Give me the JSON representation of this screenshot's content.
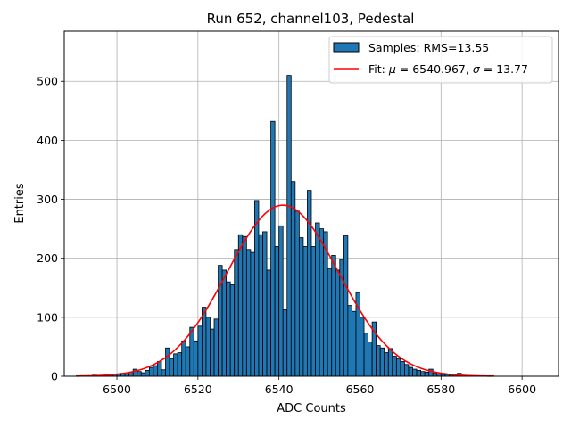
{
  "chart_data": {
    "type": "bar",
    "title": "Run 652, channel103, Pedestal",
    "xlabel": "ADC Counts",
    "ylabel": "Entries",
    "xlim": [
      6487,
      6609
    ],
    "ylim": [
      0,
      585
    ],
    "xticks": [
      6500,
      6520,
      6540,
      6560,
      6580,
      6600
    ],
    "yticks": [
      0,
      100,
      200,
      300,
      400,
      500
    ],
    "grid": true,
    "legend_position": "top-right",
    "bar_color": "#1f77b4",
    "bar_edge_color": "#000000",
    "fit_color": "#ff0000",
    "legend": {
      "samples_label": "Samples: RMS=13.55",
      "fit_label_prefix": "Fit: ",
      "fit_mu_symbol": "μ",
      "fit_mu_text": " = 6540.967, ",
      "fit_sigma_symbol": "σ",
      "fit_sigma_text": " = 13.77"
    },
    "fit": {
      "mu": 6540.967,
      "sigma": 13.77,
      "amplitude": 290,
      "x_range": [
        6490,
        6593
      ]
    },
    "series": [
      {
        "name": "Samples: RMS=13.55",
        "bin_start": 6490,
        "bin_width": 1,
        "values": [
          1,
          1,
          1,
          1,
          2,
          1,
          1,
          2,
          2,
          3,
          4,
          5,
          4,
          7,
          12,
          8,
          6,
          10,
          15,
          18,
          25,
          11,
          48,
          30,
          38,
          40,
          60,
          50,
          83,
          60,
          85,
          117,
          100,
          80,
          97,
          188,
          180,
          160,
          155,
          215,
          240,
          237,
          215,
          210,
          298,
          240,
          245,
          180,
          432,
          220,
          255,
          113,
          510,
          330,
          280,
          235,
          220,
          315,
          220,
          260,
          250,
          245,
          182,
          205,
          180,
          198,
          238,
          120,
          110,
          142,
          100,
          73,
          58,
          92,
          52,
          48,
          40,
          47,
          34,
          30,
          25,
          20,
          15,
          12,
          10,
          8,
          7,
          12,
          5,
          4,
          3,
          3,
          2,
          2,
          5,
          1,
          1,
          1,
          1,
          1,
          1,
          1,
          1
        ]
      }
    ]
  }
}
